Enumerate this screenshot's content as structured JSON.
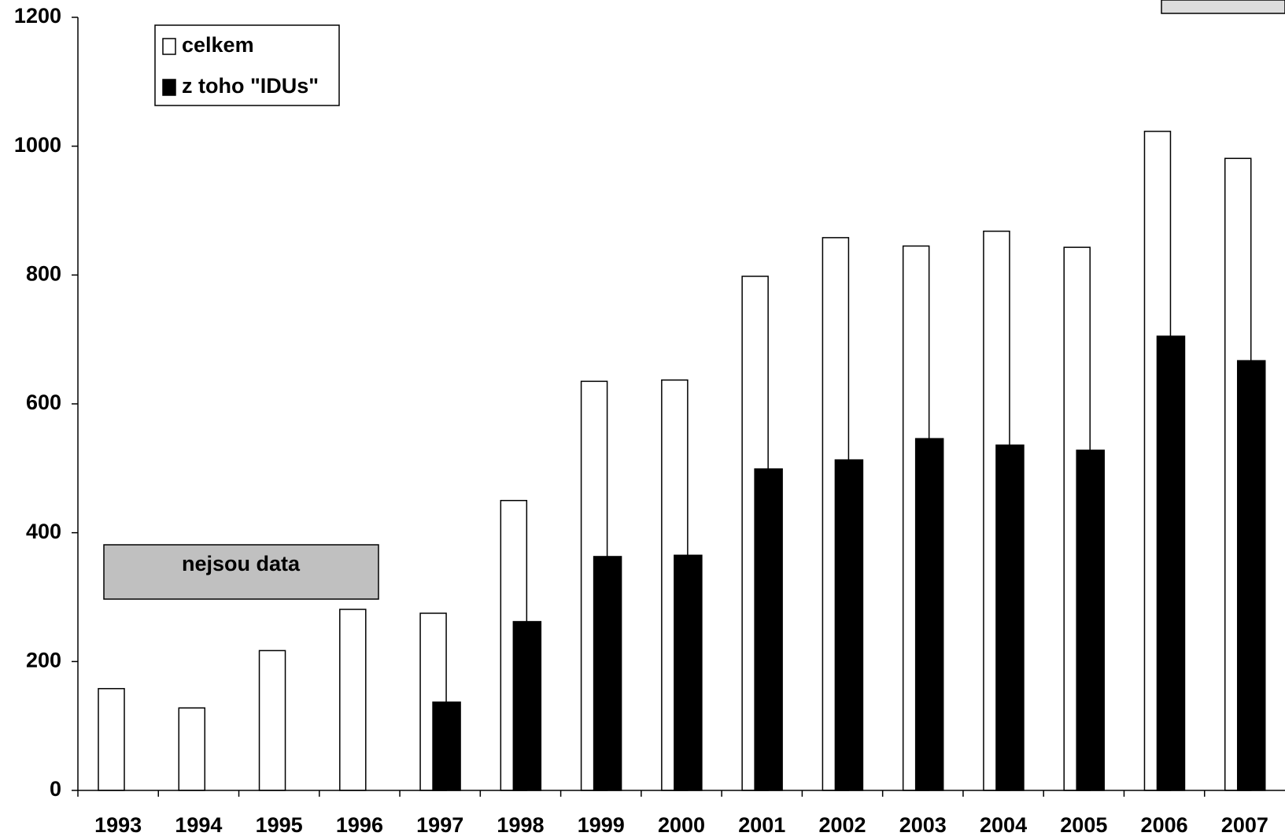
{
  "chart_data": {
    "type": "bar",
    "categories": [
      "1993",
      "1994",
      "1995",
      "1996",
      "1997",
      "1998",
      "1999",
      "2000",
      "2001",
      "2002",
      "2003",
      "2004",
      "2005",
      "2006",
      "2007"
    ],
    "series": [
      {
        "name": "celkem",
        "color": "#ffffff",
        "values": [
          158,
          128,
          217,
          281,
          275,
          450,
          635,
          637,
          798,
          858,
          845,
          868,
          843,
          1023,
          981
        ]
      },
      {
        "name": "z toho \"IDUs\"",
        "color": "#000000",
        "values": [
          null,
          null,
          null,
          null,
          137,
          262,
          363,
          365,
          499,
          513,
          546,
          536,
          528,
          705,
          667
        ]
      }
    ],
    "annotation": "nejsou data",
    "ylim": [
      0,
      1200
    ],
    "yticks": [
      0,
      200,
      400,
      600,
      800,
      1000,
      1200
    ],
    "legend": "top-left"
  }
}
